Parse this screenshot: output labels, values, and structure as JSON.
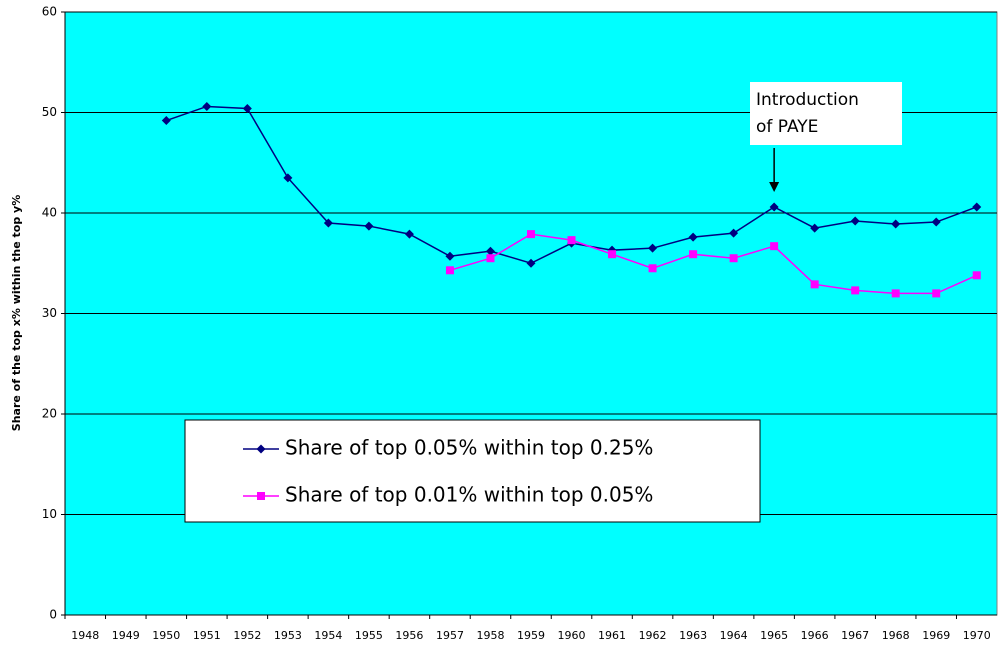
{
  "chart_data": {
    "type": "line",
    "y_label": "Share of the top x% within the top y%",
    "categories": [
      "1948",
      "1949",
      "1950",
      "1951",
      "1952",
      "1953",
      "1954",
      "1955",
      "1956",
      "1957",
      "1958",
      "1959",
      "1960",
      "1961",
      "1962",
      "1963",
      "1964",
      "1965",
      "1966",
      "1967",
      "1968",
      "1969",
      "1970"
    ],
    "series": [
      {
        "name": "Share of top 0.05% within top 0.25%",
        "color": "#000080",
        "marker": "diamond",
        "values": [
          null,
          null,
          49.2,
          50.6,
          50.4,
          43.5,
          39.0,
          38.7,
          37.9,
          35.7,
          36.2,
          35.0,
          37.0,
          36.3,
          36.5,
          37.6,
          38.0,
          40.6,
          38.5,
          39.2,
          38.9,
          39.1,
          40.6
        ]
      },
      {
        "name": "Share of top 0.01% within top 0.05%",
        "color": "#ff00ff",
        "marker": "square",
        "values": [
          null,
          null,
          null,
          null,
          null,
          null,
          null,
          null,
          null,
          34.3,
          35.5,
          37.9,
          37.3,
          35.9,
          34.5,
          35.9,
          35.5,
          36.7,
          32.9,
          32.3,
          32.0,
          32.0,
          33.8
        ]
      }
    ],
    "ylim": [
      0,
      60
    ],
    "yticks": [
      0,
      10,
      20,
      30,
      40,
      50,
      60
    ],
    "grid": true,
    "background": "#00ffff",
    "annotation": {
      "lines": [
        "Introduction",
        "of PAYE"
      ],
      "category": "1965"
    }
  }
}
